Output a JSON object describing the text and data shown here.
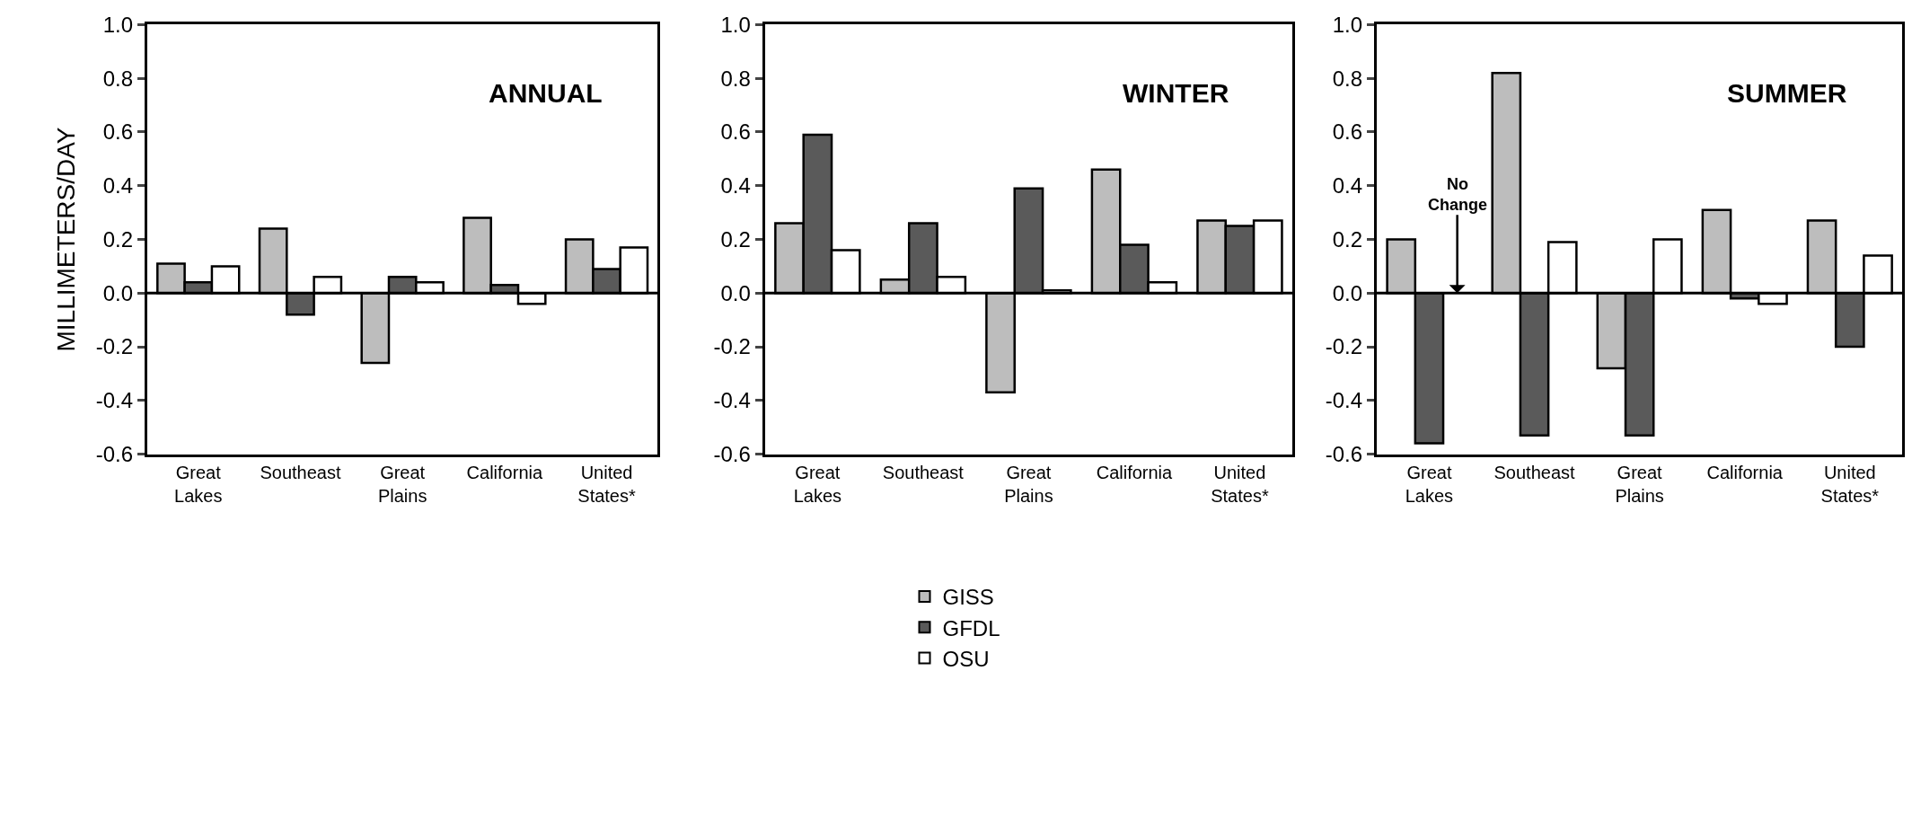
{
  "chart_data": [
    {
      "type": "bar",
      "title": "ANNUAL",
      "ylabel": "MILLIMETERS/DAY",
      "categories": [
        "Great\nLakes",
        "Southeast",
        "Great\nPlains",
        "California",
        "United\nStates*"
      ],
      "ylim": [
        -0.6,
        1.0
      ],
      "yticks": [
        {
          "value": -0.6,
          "label": "-0.6"
        },
        {
          "value": -0.4,
          "label": "-0.4"
        },
        {
          "value": -0.2,
          "label": "-0.2"
        },
        {
          "value": 0,
          "label": "0.0"
        },
        {
          "value": 0.2,
          "label": "0.2"
        },
        {
          "value": 0.4,
          "label": "0.4"
        },
        {
          "value": 0.6,
          "label": "0.6"
        },
        {
          "value": 0.8,
          "label": "0.8"
        },
        {
          "value": 1.0,
          "label": "1.0"
        }
      ],
      "legend": "bottom",
      "ref_lines": [
        {
          "axis": "y",
          "value": 0
        }
      ],
      "series": [
        {
          "name": "GISS",
          "color": "#bdbdbd",
          "values": [
            0.11,
            0.24,
            -0.26,
            0.28,
            0.2
          ]
        },
        {
          "name": "GFDL",
          "color": "#5a5a5a",
          "values": [
            0.04,
            -0.08,
            0.06,
            0.03,
            0.09
          ]
        },
        {
          "name": "OSU",
          "color": "#ffffff",
          "values": [
            0.1,
            0.06,
            0.04,
            -0.04,
            0.17
          ]
        }
      ]
    },
    {
      "type": "bar",
      "title": "WINTER",
      "categories": [
        "Great\nLakes",
        "Southeast",
        "Great\nPlains",
        "California",
        "United\nStates*"
      ],
      "ylim": [
        -0.6,
        1.0
      ],
      "yticks": [
        {
          "value": -0.6,
          "label": "-0.6"
        },
        {
          "value": -0.4,
          "label": "-0.4"
        },
        {
          "value": -0.2,
          "label": "-0.2"
        },
        {
          "value": 0,
          "label": "0.0"
        },
        {
          "value": 0.2,
          "label": "0.2"
        },
        {
          "value": 0.4,
          "label": "0.4"
        },
        {
          "value": 0.6,
          "label": "0.6"
        },
        {
          "value": 0.8,
          "label": "0.8"
        },
        {
          "value": 1.0,
          "label": "1.0"
        }
      ],
      "ref_lines": [
        {
          "axis": "y",
          "value": 0
        }
      ],
      "series": [
        {
          "color": "#bdbdbd",
          "values": [
            0.26,
            0.05,
            -0.37,
            0.46,
            0.27
          ]
        },
        {
          "color": "#5a5a5a",
          "values": [
            0.59,
            0.26,
            0.39,
            0.18,
            0.25
          ]
        },
        {
          "color": "#ffffff",
          "values": [
            0.16,
            0.06,
            0.01,
            0.04,
            0.27
          ]
        }
      ]
    },
    {
      "type": "bar",
      "title": "SUMMER",
      "categories": [
        "Great\nLakes",
        "Southeast",
        "Great\nPlains",
        "California",
        "United\nStates*"
      ],
      "ylim": [
        -0.6,
        1.0
      ],
      "yticks": [
        {
          "value": -0.6,
          "label": "-0.6"
        },
        {
          "value": -0.4,
          "label": "-0.4"
        },
        {
          "value": -0.2,
          "label": "-0.2"
        },
        {
          "value": 0,
          "label": "0.0"
        },
        {
          "value": 0.2,
          "label": "0.2"
        },
        {
          "value": 0.4,
          "label": "0.4"
        },
        {
          "value": 0.6,
          "label": "0.6"
        },
        {
          "value": 0.8,
          "label": "0.8"
        },
        {
          "value": 1.0,
          "label": "1.0"
        }
      ],
      "annotations": [
        {
          "text": "No\nChange",
          "y": 0
        }
      ],
      "ref_lines": [
        {
          "axis": "y",
          "value": 0
        }
      ],
      "series": [
        {
          "color": "#bdbdbd",
          "values": [
            0.2,
            0.82,
            -0.28,
            0.31,
            0.27
          ]
        },
        {
          "color": "#5a5a5a",
          "values": [
            -0.56,
            -0.53,
            -0.53,
            -0.02,
            -0.2
          ]
        },
        {
          "color": "#ffffff",
          "values": [
            0,
            0.19,
            0.2,
            -0.04,
            0.14
          ]
        }
      ]
    }
  ]
}
